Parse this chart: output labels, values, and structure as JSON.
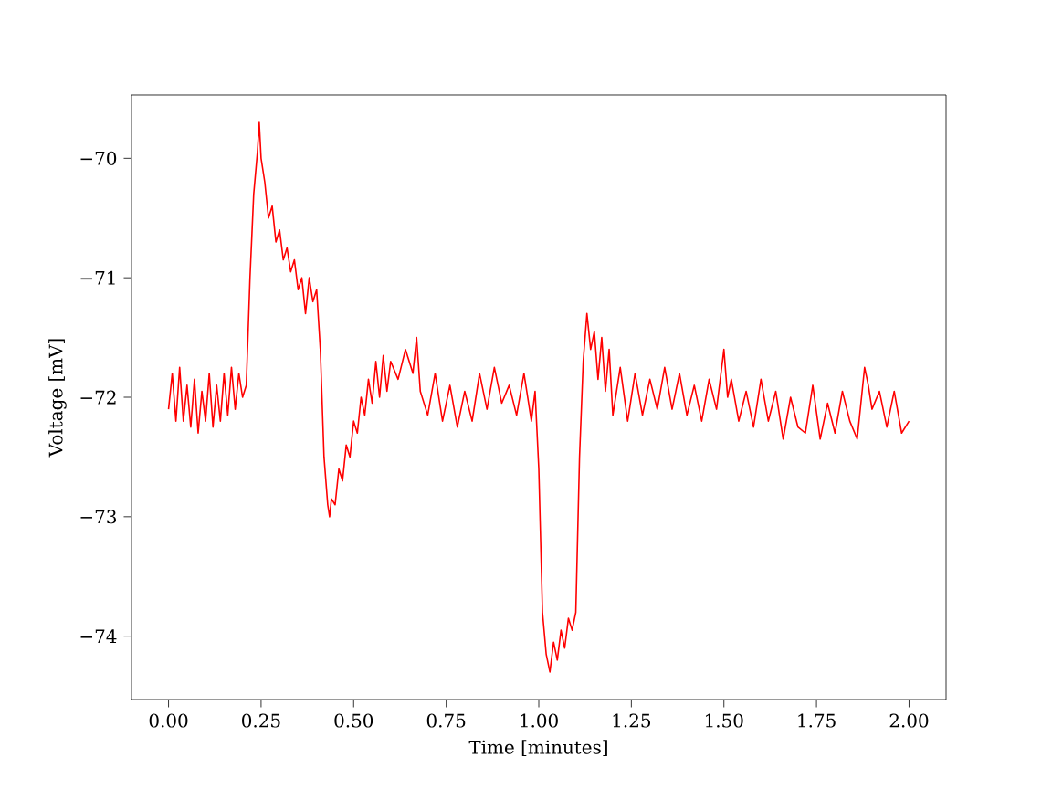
{
  "chart_data": {
    "type": "line",
    "xlabel": "Time [minutes]",
    "ylabel": "Voltage [mV]",
    "xlim": [
      -0.1,
      2.1
    ],
    "ylim": [
      -74.53,
      -69.47
    ],
    "xticks": [
      {
        "value": 0,
        "label": "0.00"
      },
      {
        "value": 0.25,
        "label": "0.25"
      },
      {
        "value": 0.5,
        "label": "0.50"
      },
      {
        "value": 0.75,
        "label": "0.75"
      },
      {
        "value": 1,
        "label": "1.00"
      },
      {
        "value": 1.25,
        "label": "1.25"
      },
      {
        "value": 1.5,
        "label": "1.50"
      },
      {
        "value": 1.75,
        "label": "1.75"
      },
      {
        "value": 2,
        "label": "2.00"
      }
    ],
    "yticks": [
      {
        "value": -74,
        "label": "−74"
      },
      {
        "value": -73,
        "label": "−73"
      },
      {
        "value": -72,
        "label": "−72"
      },
      {
        "value": -71,
        "label": "−71"
      },
      {
        "value": -70,
        "label": "−70"
      }
    ],
    "marker": "none",
    "line_style": "solid",
    "series": [
      {
        "color": "#ff0000",
        "x": [
          0,
          0.01,
          0.02,
          0.03,
          0.04,
          0.05,
          0.06,
          0.07,
          0.08,
          0.09,
          0.1,
          0.11,
          0.12,
          0.13,
          0.14,
          0.15,
          0.16,
          0.17,
          0.18,
          0.19,
          0.2,
          0.21,
          0.22,
          0.23,
          0.24,
          0.245,
          0.25,
          0.26,
          0.27,
          0.28,
          0.29,
          0.3,
          0.31,
          0.32,
          0.33,
          0.34,
          0.35,
          0.36,
          0.37,
          0.38,
          0.39,
          0.4,
          0.41,
          0.42,
          0.43,
          0.435,
          0.44,
          0.45,
          0.46,
          0.47,
          0.48,
          0.49,
          0.5,
          0.51,
          0.52,
          0.53,
          0.54,
          0.55,
          0.56,
          0.57,
          0.58,
          0.59,
          0.6,
          0.62,
          0.64,
          0.66,
          0.67,
          0.68,
          0.7,
          0.72,
          0.74,
          0.76,
          0.78,
          0.8,
          0.82,
          0.84,
          0.86,
          0.88,
          0.9,
          0.92,
          0.94,
          0.96,
          0.98,
          0.99,
          1.0,
          1.01,
          1.02,
          1.03,
          1.04,
          1.05,
          1.06,
          1.07,
          1.08,
          1.09,
          1.1,
          1.11,
          1.12,
          1.13,
          1.14,
          1.15,
          1.16,
          1.17,
          1.18,
          1.19,
          1.2,
          1.22,
          1.24,
          1.26,
          1.28,
          1.3,
          1.32,
          1.34,
          1.36,
          1.38,
          1.4,
          1.42,
          1.44,
          1.46,
          1.48,
          1.5,
          1.51,
          1.52,
          1.54,
          1.56,
          1.58,
          1.6,
          1.62,
          1.64,
          1.66,
          1.68,
          1.7,
          1.72,
          1.74,
          1.76,
          1.78,
          1.8,
          1.82,
          1.84,
          1.86,
          1.88,
          1.89,
          1.9,
          1.92,
          1.94,
          1.96,
          1.98,
          2.0
        ],
        "values": [
          -72.1,
          -71.8,
          -72.2,
          -71.75,
          -72.2,
          -71.9,
          -72.25,
          -71.85,
          -72.3,
          -71.95,
          -72.2,
          -71.8,
          -72.25,
          -71.9,
          -72.2,
          -71.8,
          -72.15,
          -71.75,
          -72.1,
          -71.8,
          -72.0,
          -71.9,
          -71.0,
          -70.3,
          -69.95,
          -69.7,
          -70.0,
          -70.2,
          -70.5,
          -70.4,
          -70.7,
          -70.6,
          -70.85,
          -70.75,
          -70.95,
          -70.85,
          -71.1,
          -71.0,
          -71.3,
          -71.0,
          -71.2,
          -71.1,
          -71.6,
          -72.5,
          -72.9,
          -73.0,
          -72.85,
          -72.9,
          -72.6,
          -72.7,
          -72.4,
          -72.5,
          -72.2,
          -72.3,
          -72.0,
          -72.15,
          -71.85,
          -72.05,
          -71.7,
          -72.0,
          -71.65,
          -71.95,
          -71.7,
          -71.85,
          -71.6,
          -71.8,
          -71.5,
          -71.95,
          -72.15,
          -71.8,
          -72.2,
          -71.9,
          -72.25,
          -71.95,
          -72.2,
          -71.8,
          -72.1,
          -71.75,
          -72.05,
          -71.9,
          -72.15,
          -71.8,
          -72.2,
          -71.95,
          -72.6,
          -73.8,
          -74.15,
          -74.3,
          -74.05,
          -74.2,
          -73.95,
          -74.1,
          -73.85,
          -73.95,
          -73.8,
          -72.5,
          -71.7,
          -71.3,
          -71.6,
          -71.45,
          -71.85,
          -71.5,
          -71.95,
          -71.6,
          -72.15,
          -71.75,
          -72.2,
          -71.8,
          -72.15,
          -71.85,
          -72.1,
          -71.75,
          -72.1,
          -71.8,
          -72.15,
          -71.9,
          -72.2,
          -71.85,
          -72.1,
          -71.6,
          -72.0,
          -71.85,
          -72.2,
          -71.95,
          -72.25,
          -71.85,
          -72.2,
          -71.95,
          -72.35,
          -72.0,
          -72.25,
          -72.3,
          -71.9,
          -72.35,
          -72.05,
          -72.3,
          -71.95,
          -72.2,
          -72.35,
          -71.75,
          -71.9,
          -72.1,
          -71.95,
          -72.25,
          -71.95,
          -72.3,
          -72.2
        ]
      }
    ]
  }
}
